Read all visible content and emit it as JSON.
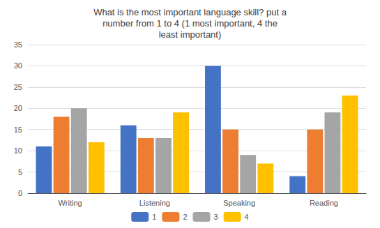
{
  "chart_data": {
    "type": "bar",
    "title": "What is the most important language skill? put a\nnumber from 1 to 4 (1 most important, 4 the\nleast important)",
    "categories": [
      "Writing",
      "Listening",
      "Speaking",
      "Reading"
    ],
    "series": [
      {
        "name": "1",
        "color": "#4472C4",
        "values": [
          11,
          16,
          30,
          4
        ]
      },
      {
        "name": "2",
        "color": "#ED7D31",
        "values": [
          18,
          13,
          15,
          15
        ]
      },
      {
        "name": "3",
        "color": "#A5A5A5",
        "values": [
          20,
          13,
          9,
          19
        ]
      },
      {
        "name": "4",
        "color": "#FFC000",
        "values": [
          12,
          19,
          7,
          23
        ]
      }
    ],
    "ylim": [
      0,
      35
    ],
    "yticks": [
      0,
      5,
      10,
      15,
      20,
      25,
      30,
      35
    ],
    "grid": true,
    "legend": "bottom"
  }
}
